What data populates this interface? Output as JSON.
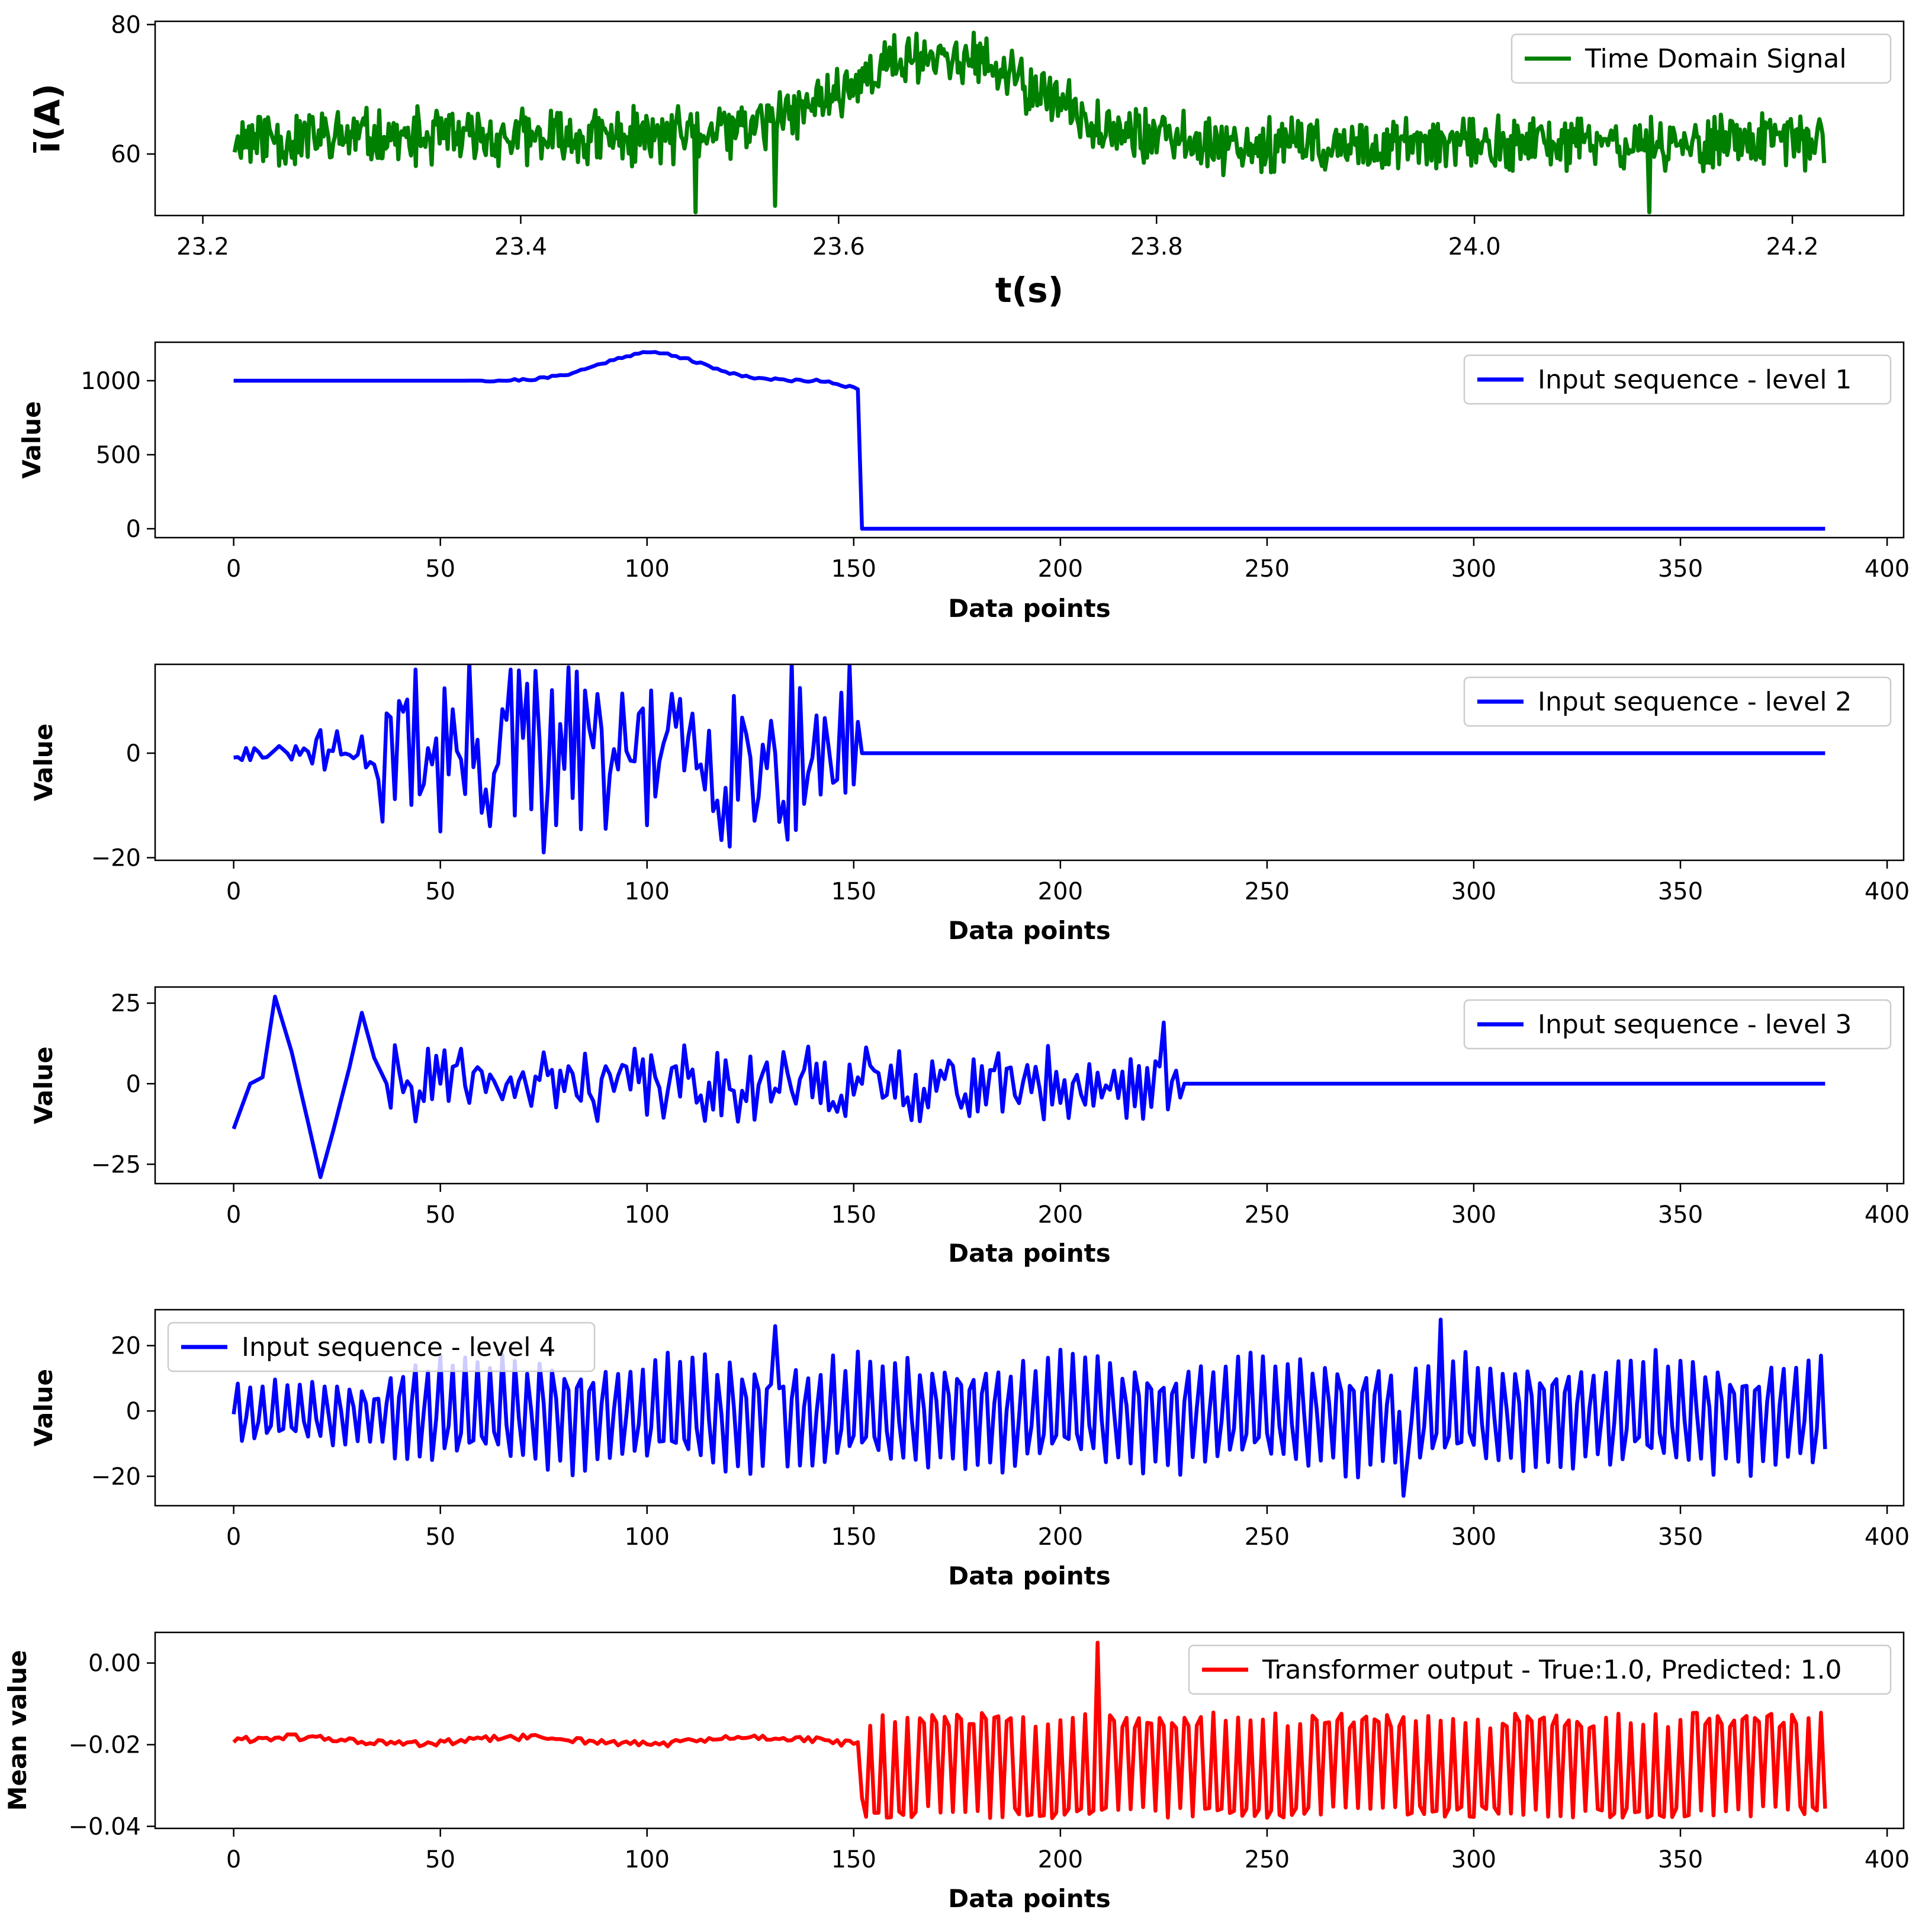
{
  "chart_data": [
    {
      "type": "line",
      "panel": "time-domain",
      "series": [
        {
          "name": "Time Domain Signal",
          "color": "#008000"
        }
      ],
      "x_range": [
        23.22,
        24.22
      ],
      "points": 1000,
      "baseline": 62.5,
      "bump": {
        "center": 23.665,
        "height": 13,
        "width": 0.06
      },
      "dips": [
        {
          "x": 23.51,
          "y": 51
        },
        {
          "x": 23.56,
          "y": 52
        },
        {
          "x": 24.11,
          "y": 51
        }
      ],
      "xlabel": "t(s)",
      "ylabel": "ī(A)",
      "xlim": [
        23.17,
        24.27
      ],
      "ylim": [
        50.5,
        80.5
      ],
      "xticks": [
        23.2,
        23.4,
        23.6,
        23.8,
        24.0,
        24.2
      ],
      "xtick_labels": [
        "23.2",
        "23.4",
        "23.6",
        "23.8",
        "24.0",
        "24.2"
      ],
      "yticks": [
        60,
        80
      ],
      "ytick_labels": [
        "60",
        "80"
      ],
      "legend": "upper right"
    },
    {
      "type": "line",
      "panel": "level-1",
      "series": [
        {
          "name": "Input sequence - level 1",
          "color": "#0000ff"
        }
      ],
      "x_range": [
        0,
        385
      ],
      "segment_end": 151,
      "baseline": 1000,
      "bump": {
        "center": 101,
        "height": 190,
        "width": 12
      },
      "xlabel": "Data points",
      "ylabel": "Value",
      "xlim": [
        -19,
        404
      ],
      "ylim": [
        -60,
        1260
      ],
      "xticks": [
        0,
        50,
        100,
        150,
        200,
        250,
        300,
        350,
        400
      ],
      "xtick_labels": [
        "0",
        "50",
        "100",
        "150",
        "200",
        "250",
        "300",
        "350",
        "400"
      ],
      "yticks": [
        0,
        500,
        1000
      ],
      "ytick_labels": [
        "0",
        "500",
        "1000"
      ],
      "legend": "upper right"
    },
    {
      "type": "line",
      "panel": "level-2",
      "series": [
        {
          "name": "Input sequence - level 2",
          "color": "#0000ff"
        }
      ],
      "x_range": [
        0,
        385
      ],
      "segment_end": 151,
      "amplitude": 15,
      "xlabel": "Data points",
      "ylabel": "Value",
      "xlim": [
        -19,
        404
      ],
      "ylim": [
        -20.5,
        17
      ],
      "xticks": [
        0,
        50,
        100,
        150,
        200,
        250,
        300,
        350,
        400
      ],
      "xtick_labels": [
        "0",
        "50",
        "100",
        "150",
        "200",
        "250",
        "300",
        "350",
        "400"
      ],
      "yticks": [
        -20,
        0
      ],
      "ytick_labels": [
        "−20",
        "0"
      ],
      "legend": "upper right"
    },
    {
      "type": "line",
      "panel": "level-3",
      "series": [
        {
          "name": "Input sequence - level 3",
          "color": "#0000ff"
        }
      ],
      "x_range": [
        0,
        385
      ],
      "segment_end": 229,
      "start_wave": [
        [
          0,
          -14
        ],
        [
          4,
          0
        ],
        [
          7,
          2
        ],
        [
          10,
          27
        ],
        [
          14,
          10
        ],
        [
          18,
          -12
        ],
        [
          21,
          -29
        ],
        [
          24,
          -15
        ],
        [
          28,
          5
        ],
        [
          31,
          22
        ],
        [
          34,
          8
        ],
        [
          37,
          0
        ]
      ],
      "amplitude": 9,
      "xlabel": "Data points",
      "ylabel": "Value",
      "xlim": [
        -19,
        404
      ],
      "ylim": [
        -31,
        30
      ],
      "xticks": [
        0,
        50,
        100,
        150,
        200,
        250,
        300,
        350,
        400
      ],
      "xtick_labels": [
        "0",
        "50",
        "100",
        "150",
        "200",
        "250",
        "300",
        "350",
        "400"
      ],
      "yticks": [
        -25,
        0,
        25
      ],
      "ytick_labels": [
        "−25",
        "0",
        "25"
      ],
      "legend": "upper right"
    },
    {
      "type": "line",
      "panel": "level-4",
      "series": [
        {
          "name": "Input sequence - level 4",
          "color": "#0000ff"
        }
      ],
      "x_range": [
        0,
        385
      ],
      "amplitude": 18,
      "xlabel": "Data points",
      "ylabel": "Value",
      "xlim": [
        -19,
        404
      ],
      "ylim": [
        -29,
        31
      ],
      "xticks": [
        0,
        50,
        100,
        150,
        200,
        250,
        300,
        350,
        400
      ],
      "xtick_labels": [
        "0",
        "50",
        "100",
        "150",
        "200",
        "250",
        "300",
        "350",
        "400"
      ],
      "yticks": [
        -20,
        0,
        20
      ],
      "ytick_labels": [
        "−20",
        "0",
        "20"
      ],
      "legend": "upper left"
    },
    {
      "type": "line",
      "panel": "transformer-output",
      "series": [
        {
          "name": "Transformer output - True:1.0, Predicted: 1.0",
          "color": "#ff0000"
        }
      ],
      "x_range": [
        0,
        385
      ],
      "segment_end": 151,
      "baseline": -0.019,
      "osc_high": -0.012,
      "osc_low": -0.035,
      "peak": {
        "x": 209,
        "y": 0.005
      },
      "xlabel": "Data points",
      "ylabel": "Mean value",
      "xlim": [
        -19,
        404
      ],
      "ylim": [
        -0.0405,
        0.0075
      ],
      "xticks": [
        0,
        50,
        100,
        150,
        200,
        250,
        300,
        350,
        400
      ],
      "xtick_labels": [
        "0",
        "50",
        "100",
        "150",
        "200",
        "250",
        "300",
        "350",
        "400"
      ],
      "yticks": [
        -0.04,
        -0.02,
        0.0
      ],
      "ytick_labels": [
        "−0.04",
        "−0.02",
        "0.00"
      ],
      "legend": "upper right"
    }
  ]
}
